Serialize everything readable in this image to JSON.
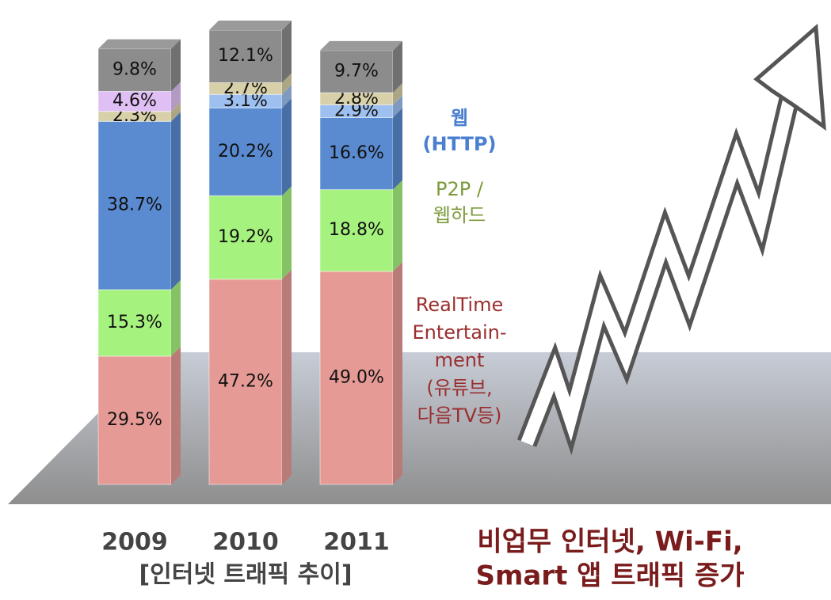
{
  "chart_data": {
    "type": "stacked_bar",
    "categories": [
      "2009",
      "2010",
      "2011"
    ],
    "subtitle": "[인터넷 트래픽 추이]",
    "annotation": [
      "비업무 인터넷, Wi-Fi,",
      "Smart 앱 트래픽 증가"
    ],
    "series": [
      {
        "name": [
          "RealTime",
          "Entertain-",
          "ment",
          "(유튜브,",
          "다음TV등)"
        ],
        "name_color": "#9a2e2e",
        "color": "#e69a96",
        "values": [
          29.5,
          47.2,
          49.0
        ],
        "value_labels": [
          "29.5%",
          "47.2%",
          "49.0%"
        ]
      },
      {
        "name": [
          "P2P /",
          "웹하드"
        ],
        "name_color": "#7b9a3a",
        "color": "#a6f27e",
        "values": [
          15.3,
          19.2,
          18.8
        ],
        "value_labels": [
          "15.3%",
          "19.2%",
          "18.8%"
        ]
      },
      {
        "name": [
          "웹",
          "(HTTP)"
        ],
        "name_color": "#4a7fd0",
        "color": "#5a8ad0",
        "values": [
          38.7,
          20.2,
          16.6
        ],
        "value_labels": [
          "38.7%",
          "20.2%",
          "16.6%"
        ]
      },
      {
        "color": "#9ec0f0",
        "values": [
          null,
          3.1,
          2.9
        ],
        "value_labels": [
          null,
          "3.1%",
          "2.9%"
        ]
      },
      {
        "color": "#d8d0a8",
        "values": [
          2.3,
          2.7,
          2.8
        ],
        "value_labels": [
          "2.3%",
          "2.7%",
          "2.8%"
        ]
      },
      {
        "color": "#e0c0f4",
        "values": [
          4.6,
          null,
          null
        ],
        "value_labels": [
          "4.6%",
          null,
          null
        ]
      },
      {
        "color": "#8c8c8c",
        "values": [
          9.8,
          12.1,
          9.7
        ],
        "value_labels": [
          "9.8%",
          "12.1%",
          "9.7%"
        ]
      }
    ]
  }
}
